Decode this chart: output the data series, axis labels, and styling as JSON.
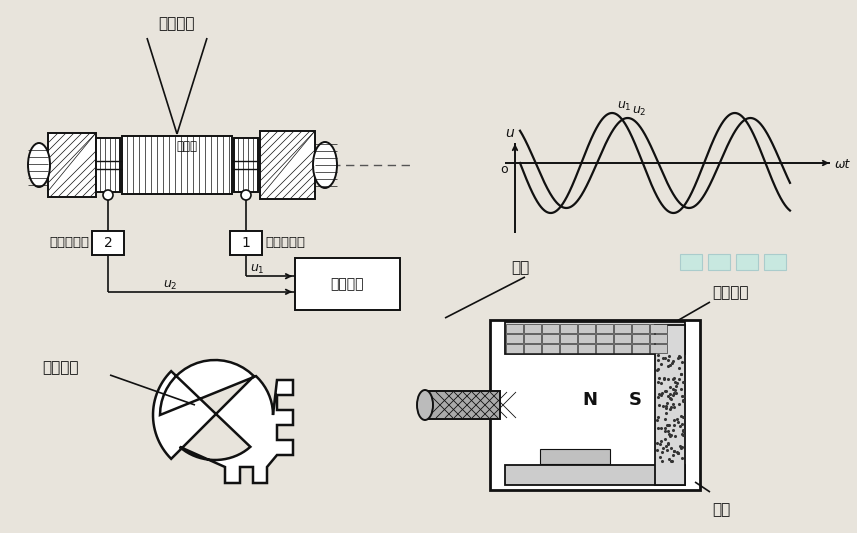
{
  "bg_color": "#e8e4dc",
  "line_color": "#111111",
  "text_color": "#111111",
  "labels": {
    "gear_disc_top": "齿形圆盘",
    "torsion_shaft": "扭转轴",
    "sensor_left": "磁电传感器",
    "sensor_right": "磁电传感器",
    "s1": "1",
    "s2": "2",
    "u_axis": "u",
    "wt_axis": "ωt",
    "origin": "o",
    "measure": "测量仪表",
    "gear_disc_bot": "齿形圆盘",
    "coil": "线圈",
    "perm_magnet": "永久磁铁",
    "iron_core": "铁芯",
    "u1": "u₁",
    "u2": "u₂"
  },
  "waveform": {
    "amp1": 50,
    "amp2": 45,
    "phase_shift": 0.8,
    "cycles": 2.2
  }
}
